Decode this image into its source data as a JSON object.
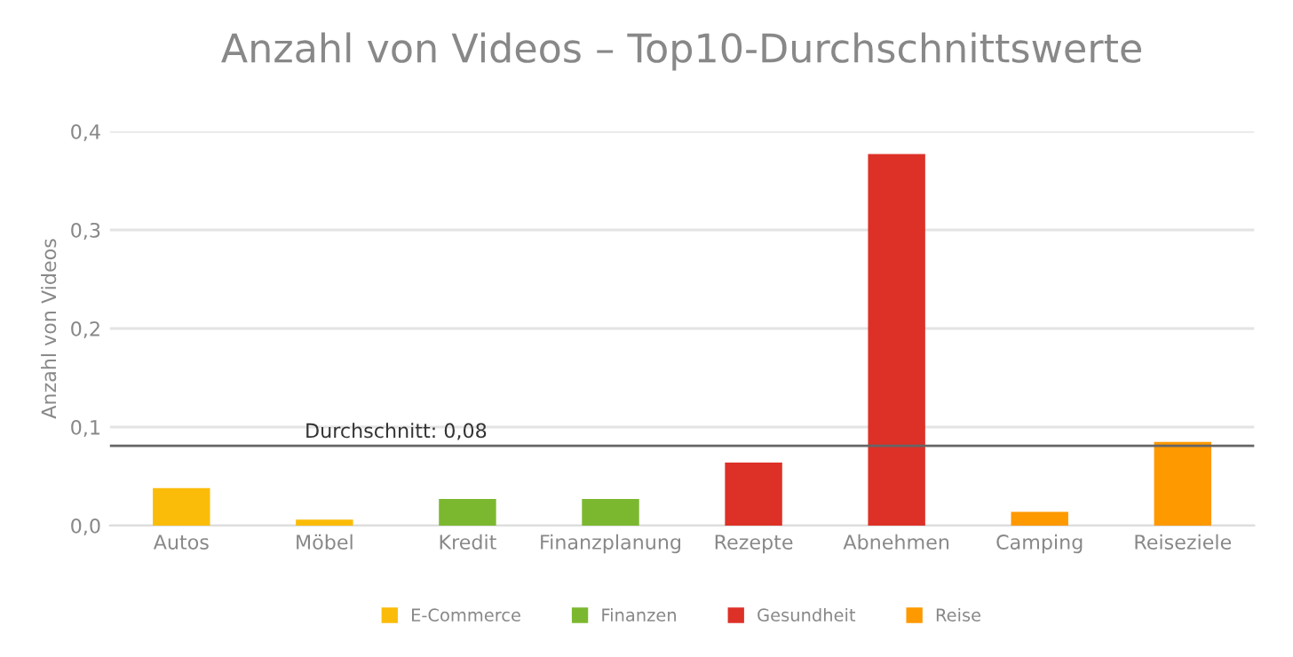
{
  "chart_data": {
    "type": "bar",
    "title": "Anzahl von Videos – Top10-Durchschnittswerte",
    "ylabel": "Anzahl von Videos",
    "categories": [
      "Autos",
      "Möbel",
      "Kredit",
      "Finanzplanung",
      "Rezepte",
      "Abnehmen",
      "Camping",
      "Reiseziele"
    ],
    "series": [
      {
        "name": "E-Commerce",
        "color": "#fbbc09",
        "values": [
          0.038,
          0.006,
          null,
          null,
          null,
          null,
          null,
          null
        ]
      },
      {
        "name": "Finanzen",
        "color": "#7cb82f",
        "values": [
          null,
          null,
          0.027,
          0.027,
          null,
          null,
          null,
          null
        ]
      },
      {
        "name": "Gesundheit",
        "color": "#dd3127",
        "values": [
          null,
          null,
          null,
          null,
          0.064,
          0.377,
          null,
          null
        ]
      },
      {
        "name": "Reise",
        "color": "#ff9900",
        "values": [
          null,
          null,
          null,
          null,
          null,
          null,
          0.014,
          0.085
        ]
      }
    ],
    "ylim": [
      0,
      0.4
    ],
    "yticks": [
      {
        "value": 0,
        "label": "0,0"
      },
      {
        "value": 0.1,
        "label": "0,1"
      },
      {
        "value": 0.2,
        "label": "0,2"
      },
      {
        "value": 0.3,
        "label": "0,3"
      },
      {
        "value": 0.4,
        "label": "0,4"
      }
    ],
    "ref_lines": [
      {
        "axis": "y",
        "value": 0.081,
        "label": "Durchschnitt: 0,08",
        "color": "#666666"
      }
    ],
    "grid": "y",
    "legend": "bottom"
  }
}
